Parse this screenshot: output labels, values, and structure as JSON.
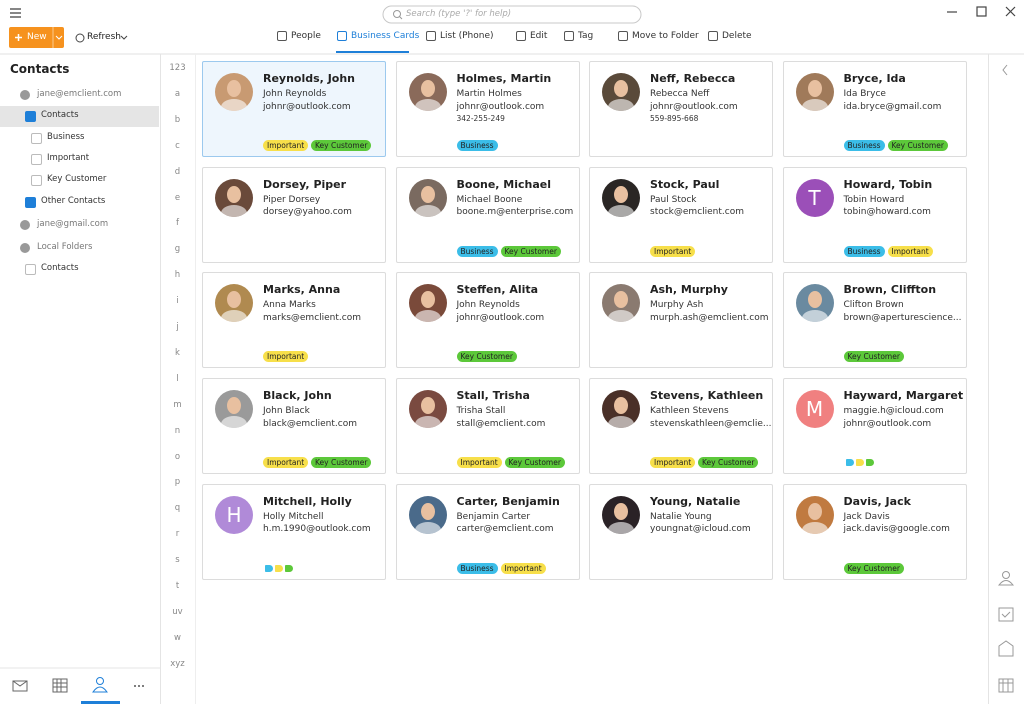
{
  "toolbar": {
    "new": "New",
    "refresh": "Refresh",
    "search": "Search (type '?' for help)",
    "tabs": [
      "People",
      "Business Cards",
      "List (Phone)",
      "Edit",
      "Tag",
      "Move to Folder",
      "Delete"
    ],
    "active_tab": 1
  },
  "sidebar": {
    "title": "Contacts",
    "tree": [
      {
        "label": "jane@emclient.com",
        "level": 0
      },
      {
        "label": "Contacts",
        "level": 1,
        "checked": true,
        "selected": true
      },
      {
        "label": "Business",
        "level": 2,
        "checked": false
      },
      {
        "label": "Important",
        "level": 2,
        "checked": false
      },
      {
        "label": "Key Customer",
        "level": 2,
        "checked": false
      },
      {
        "label": "Other Contacts",
        "level": 1,
        "checked": true
      },
      {
        "label": "jane@gmail.com",
        "level": 0
      },
      {
        "label": "Local Folders",
        "level": 0
      },
      {
        "label": "Contacts",
        "level": 1,
        "checked": false
      }
    ]
  },
  "alphabet": [
    "123",
    "a",
    "b",
    "c",
    "d",
    "e",
    "f",
    "g",
    "h",
    "i",
    "j",
    "k",
    "l",
    "m",
    "n",
    "o",
    "p",
    "q",
    "r",
    "s",
    "t",
    "uv",
    "w",
    "xyz"
  ],
  "cards": [
    {
      "name": "Reynolds, John",
      "lines": [
        "John Reynolds",
        "johnr@outlook.com"
      ],
      "avatar_color": "#c89a72",
      "selected": true,
      "tags": [
        {
          "label": "Important",
          "color": "#f7df4a"
        },
        {
          "label": "Key Customer",
          "color": "#5cc83a"
        }
      ]
    },
    {
      "name": "Holmes, Martin",
      "lines": [
        "Martin Holmes",
        "johnr@outlook.com",
        "342-255-249"
      ],
      "avatar_color": "#8a6a5a",
      "tags": [
        {
          "label": "Business",
          "color": "#3bbde8"
        }
      ]
    },
    {
      "name": "Neff, Rebecca",
      "lines": [
        "Rebecca Neff",
        "johnr@outlook.com",
        "559-895-668"
      ],
      "avatar_color": "#5a4a3a",
      "tags": []
    },
    {
      "name": "Bryce, Ida",
      "lines": [
        "Ida Bryce",
        "ida.bryce@gmail.com"
      ],
      "avatar_color": "#a07a5a",
      "tags": [
        {
          "label": "Business",
          "color": "#3bbde8"
        },
        {
          "label": "Key Customer",
          "color": "#5cc83a"
        }
      ]
    },
    {
      "name": "Dorsey, Piper",
      "lines": [
        "Piper Dorsey",
        "dorsey@yahoo.com"
      ],
      "avatar_color": "#6a4a3a",
      "tags": []
    },
    {
      "name": "Boone, Michael",
      "lines": [
        "Michael Boone",
        "boone.m@enterprise.com"
      ],
      "avatar_color": "#7a6a60",
      "tags": [
        {
          "label": "Business",
          "color": "#3bbde8"
        },
        {
          "label": "Key Customer",
          "color": "#5cc83a"
        }
      ]
    },
    {
      "name": "Stock, Paul",
      "lines": [
        "Paul Stock",
        "stock@emclient.com"
      ],
      "avatar_color": "#2a2624",
      "tags": [
        {
          "label": "Important",
          "color": "#f7df4a"
        }
      ]
    },
    {
      "name": "Howard, Tobin",
      "avatar_letter": "T",
      "lines": [
        "Tobin Howard",
        "tobin@howard.com"
      ],
      "avatar_color": "#9b4fb8",
      "tags": [
        {
          "label": "Business",
          "color": "#3bbde8"
        },
        {
          "label": "Important",
          "color": "#f7df4a"
        }
      ]
    },
    {
      "name": "Marks, Anna",
      "lines": [
        "Anna Marks",
        "marks@emclient.com"
      ],
      "avatar_color": "#b08a50",
      "tags": [
        {
          "label": "Important",
          "color": "#f7df4a"
        }
      ]
    },
    {
      "name": "Steffen, Alita",
      "lines": [
        "John Reynolds",
        "johnr@outlook.com"
      ],
      "avatar_color": "#7a4a3a",
      "tags": [
        {
          "label": "Key Customer",
          "color": "#5cc83a"
        }
      ]
    },
    {
      "name": "Ash, Murphy",
      "lines": [
        "Murphy Ash",
        "murph.ash@emclient.com"
      ],
      "avatar_color": "#8a7a70",
      "tags": []
    },
    {
      "name": "Brown, Cliffton",
      "lines": [
        "Clifton Brown",
        "brown@aperturescience..."
      ],
      "avatar_color": "#6a8aa0",
      "tags": [
        {
          "label": "Key Customer",
          "color": "#5cc83a"
        }
      ]
    },
    {
      "name": "Black, John",
      "lines": [
        "John Black",
        "black@emclient.com"
      ],
      "avatar_color": "#9a9a9a",
      "tags": [
        {
          "label": "Important",
          "color": "#f7df4a"
        },
        {
          "label": "Key Customer",
          "color": "#5cc83a"
        }
      ]
    },
    {
      "name": "Stall, Trisha",
      "lines": [
        "Trisha Stall",
        "stall@emclient.com"
      ],
      "avatar_color": "#7a4a40",
      "tags": [
        {
          "label": "Important",
          "color": "#f7df4a"
        },
        {
          "label": "Key Customer",
          "color": "#5cc83a"
        }
      ]
    },
    {
      "name": "Stevens, Kathleen",
      "lines": [
        "Kathleen Stevens",
        "stevenskathleen@emclie..."
      ],
      "avatar_color": "#4a3028",
      "tags": [
        {
          "label": "Important",
          "color": "#f7df4a"
        },
        {
          "label": "Key Customer",
          "color": "#5cc83a"
        }
      ]
    },
    {
      "name": "Hayward, Margaret",
      "avatar_letter": "M",
      "lines": [
        "maggie.h@icloud.com",
        "johnr@outlook.com"
      ],
      "avatar_color": "#f08080",
      "tags": [],
      "tag_icons": [
        "#3bbde8",
        "#f7df4a",
        "#5cc83a"
      ]
    },
    {
      "name": "Mitchell, Holly",
      "avatar_letter": "H",
      "lines": [
        "Holly Mitchell",
        "h.m.1990@outlook.com"
      ],
      "avatar_color": "#b08ad8",
      "tags": [],
      "tag_icons": [
        "#3bbde8",
        "#f7df4a",
        "#5cc83a"
      ]
    },
    {
      "name": "Carter, Benjamin",
      "lines": [
        "Benjamin Carter",
        "carter@emclient.com"
      ],
      "avatar_color": "#4a6a8a",
      "tags": [
        {
          "label": "Business",
          "color": "#3bbde8"
        },
        {
          "label": "Important",
          "color": "#f7df4a"
        }
      ]
    },
    {
      "name": "Young, Natalie",
      "lines": [
        "Natalie Young",
        "youngnat@icloud.com"
      ],
      "avatar_color": "#2a2226",
      "tags": []
    },
    {
      "name": "Davis, Jack",
      "lines": [
        "Jack Davis",
        "jack.davis@google.com"
      ],
      "avatar_color": "#c07a40",
      "tags": [
        {
          "label": "Key Customer",
          "color": "#5cc83a"
        }
      ]
    }
  ]
}
